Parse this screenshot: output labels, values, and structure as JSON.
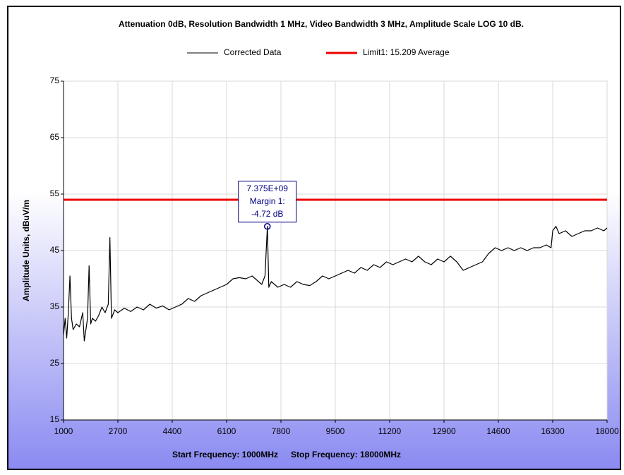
{
  "chart_data": {
    "type": "line",
    "title": "Attenuation 0dB, Resolution Bandwidth 1 MHz, Video Bandwidth 3 MHz, Amplitude Scale LOG 10 dB.",
    "y_label": "Amplitude Units, dBuV/m",
    "footer": [
      "Start Frequency: 1000MHz",
      "Stop Frequency: 18000MHz"
    ],
    "xlim": [
      1000,
      18000
    ],
    "xticks": [
      1000,
      2700,
      4400,
      6100,
      7800,
      9500,
      11200,
      12900,
      14600,
      16300,
      18000
    ],
    "ylim": [
      15,
      75
    ],
    "yticks": [
      15,
      25,
      35,
      45,
      55,
      65,
      75
    ],
    "grid": true,
    "series": [
      {
        "name": "Corrected Data",
        "color": "#000000",
        "x": [
          1000,
          1050,
          1100,
          1150,
          1200,
          1250,
          1300,
          1400,
          1500,
          1600,
          1650,
          1700,
          1750,
          1800,
          1850,
          1900,
          2000,
          2100,
          2200,
          2300,
          2400,
          2450,
          2500,
          2600,
          2700,
          2900,
          3100,
          3300,
          3500,
          3700,
          3900,
          4100,
          4300,
          4500,
          4700,
          4900,
          5100,
          5300,
          5500,
          5700,
          5900,
          6100,
          6300,
          6500,
          6700,
          6900,
          7100,
          7200,
          7300,
          7375,
          7420,
          7500,
          7700,
          7900,
          8100,
          8300,
          8500,
          8700,
          8900,
          9100,
          9300,
          9500,
          9700,
          9900,
          10100,
          10300,
          10500,
          10700,
          10900,
          11100,
          11300,
          11500,
          11700,
          11900,
          12100,
          12300,
          12500,
          12700,
          12900,
          13100,
          13300,
          13500,
          13700,
          13900,
          14100,
          14300,
          14500,
          14700,
          14900,
          15100,
          15300,
          15500,
          15700,
          15900,
          16100,
          16250,
          16300,
          16400,
          16500,
          16700,
          16900,
          17100,
          17300,
          17500,
          17700,
          17900,
          18000
        ],
        "values": [
          30,
          33,
          29.5,
          34,
          40.5,
          33,
          31,
          32,
          31.5,
          34,
          29,
          31,
          33,
          42.3,
          32,
          33,
          32.5,
          33.5,
          35,
          34,
          35.5,
          47.3,
          33,
          34.5,
          34,
          34.8,
          34.2,
          35,
          34.5,
          35.5,
          34.8,
          35.2,
          34.5,
          35,
          35.5,
          36.5,
          36,
          37,
          37.5,
          38,
          38.5,
          39,
          40,
          40.2,
          40,
          40.5,
          39.5,
          39,
          40.5,
          49.3,
          38.5,
          39.5,
          38.5,
          39,
          38.5,
          39.5,
          39,
          38.8,
          39.5,
          40.5,
          40,
          40.5,
          41,
          41.5,
          41,
          42,
          41.5,
          42.5,
          42,
          43,
          42.5,
          43,
          43.5,
          43,
          44,
          43,
          42.5,
          43.5,
          43,
          44,
          43,
          41.5,
          42,
          42.5,
          43,
          44.5,
          45.5,
          45,
          45.5,
          45,
          45.5,
          45,
          45.5,
          45.5,
          46,
          45.5,
          48.5,
          49.3,
          48,
          48.5,
          47.5,
          48,
          48.5,
          48.5,
          49,
          48.5,
          49
        ]
      },
      {
        "name": "Limit1: 15.209 Average",
        "color": "#ee0000",
        "x": [
          1000,
          18000
        ],
        "values": [
          54,
          54
        ]
      }
    ],
    "annotation": {
      "lines": [
        "7.375E+09",
        "Margin 1:",
        "-4.72 dB"
      ],
      "x": 7375,
      "y": 49.28
    }
  }
}
